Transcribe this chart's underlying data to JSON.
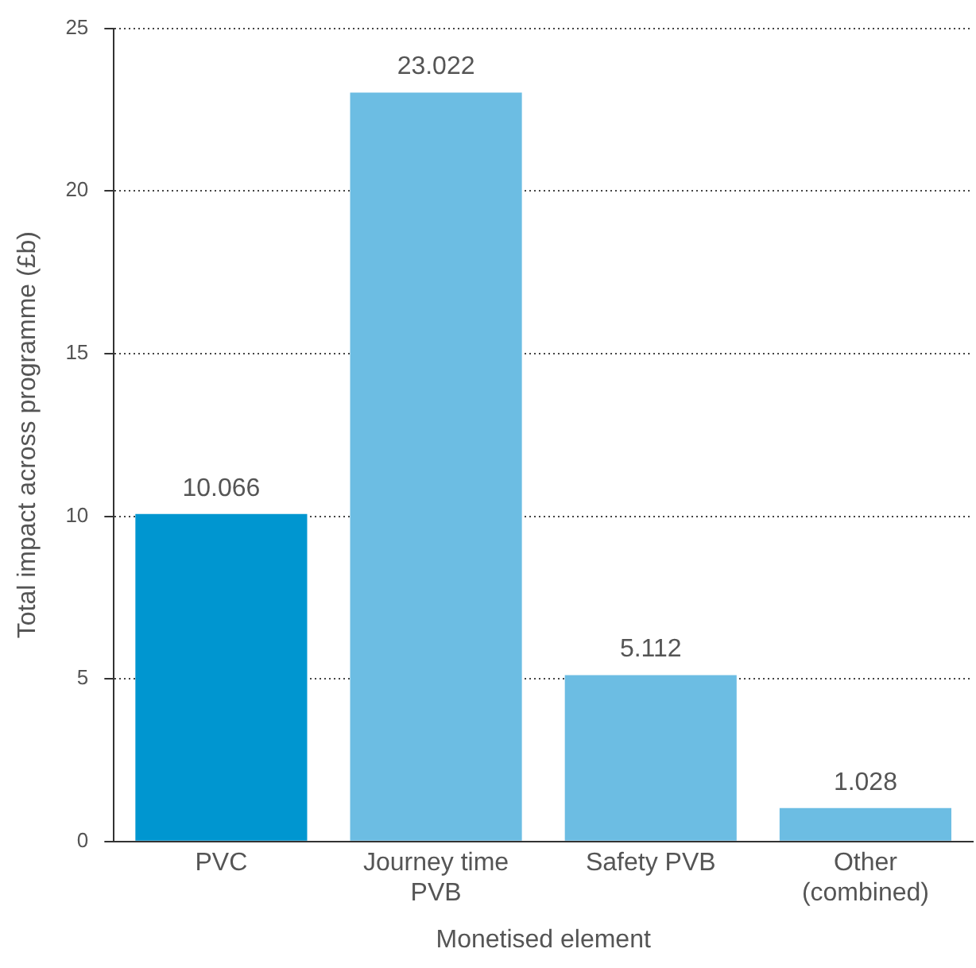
{
  "chart_data": {
    "type": "bar",
    "xlabel": "Monetised element",
    "ylabel": "Total impact across programme (£b)",
    "categories": [
      "PVC",
      "Journey time\nPVB",
      "Safety PVB",
      "Other\n(combined)"
    ],
    "values": [
      10.066,
      23.022,
      5.112,
      1.028
    ],
    "colors": [
      "#0096d0",
      "#6cbde3",
      "#6cbde3",
      "#6cbde3"
    ],
    "ylim": [
      0,
      25
    ],
    "yticks": [
      0,
      5,
      10,
      15,
      20,
      25
    ],
    "grid": "y",
    "data_labels": true,
    "legend": false
  }
}
